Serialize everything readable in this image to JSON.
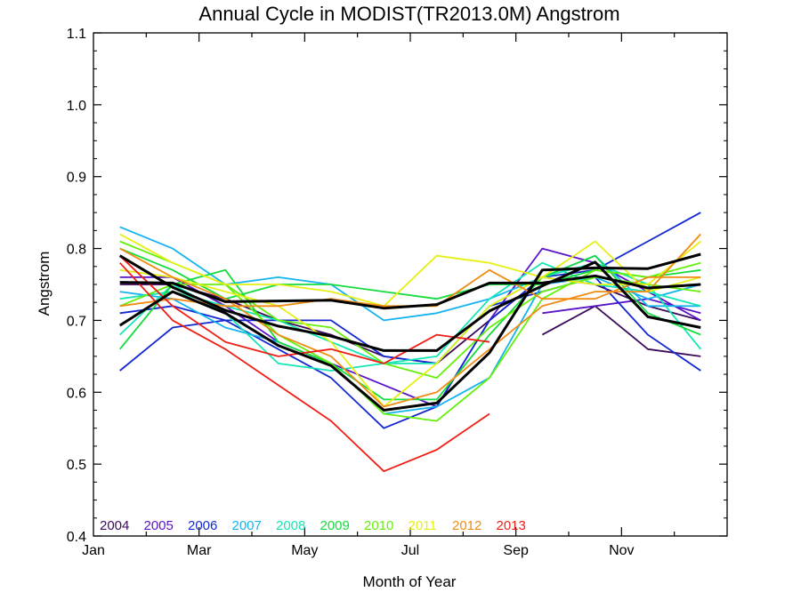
{
  "chart_data": {
    "type": "line",
    "title": "Annual Cycle in MODIST(TR2013.0M) Angstrom",
    "xlabel": "Month of Year",
    "ylabel": "Angstrom",
    "xlim": [
      0,
      12
    ],
    "ylim": [
      0.4,
      1.1
    ],
    "x_ticks": [
      {
        "value": 0,
        "label": "Jan"
      },
      {
        "value": 2,
        "label": "Mar"
      },
      {
        "value": 4,
        "label": "May"
      },
      {
        "value": 6,
        "label": "Jul"
      },
      {
        "value": 8,
        "label": "Sep"
      },
      {
        "value": 10,
        "label": "Nov"
      }
    ],
    "y_ticks": [
      0.4,
      0.5,
      0.6,
      0.7,
      0.8,
      0.9,
      1.0,
      1.1
    ],
    "y_tick_labels": [
      "0.4",
      "0.5",
      "0.6",
      "0.7",
      "0.8",
      "0.9",
      "1.0",
      "1.1"
    ],
    "x": [
      0.5,
      1.5,
      2.5,
      3.5,
      4.5,
      5.5,
      6.5,
      7.5,
      8.5,
      9.5,
      10.5,
      11.5
    ],
    "legend_placement": "bottom-left",
    "grid": false,
    "series": [
      {
        "name": "2004",
        "color": "#3c0a5a",
        "lines": [
          [
            0.75,
            0.75,
            0.73,
            0.7,
            0.68,
            0.65,
            0.64,
            0.7,
            0.76,
            0.75,
            0.72,
            0.7
          ],
          [
            null,
            null,
            null,
            null,
            null,
            null,
            null,
            null,
            0.68,
            0.72,
            0.66,
            0.65
          ]
        ]
      },
      {
        "name": "2005",
        "color": "#5a14c8",
        "lines": [
          [
            0.76,
            0.76,
            0.72,
            0.67,
            0.64,
            0.61,
            0.58,
            0.7,
            0.8,
            0.78,
            0.74,
            0.7
          ],
          [
            null,
            null,
            null,
            null,
            null,
            null,
            null,
            null,
            0.71,
            0.72,
            0.73,
            0.71
          ]
        ]
      },
      {
        "name": "2006",
        "color": "#1428d2",
        "lines": [
          [
            0.63,
            0.69,
            0.7,
            0.66,
            0.62,
            0.55,
            0.58,
            0.7,
            0.76,
            0.77,
            0.81,
            0.85
          ],
          [
            0.71,
            0.72,
            0.7,
            0.7,
            0.7,
            0.65,
            0.64,
            0.72,
            0.74,
            0.76,
            0.68,
            0.63
          ]
        ]
      },
      {
        "name": "2007",
        "color": "#14b4f0",
        "lines": [
          [
            0.83,
            0.8,
            0.75,
            0.76,
            0.75,
            0.7,
            0.71,
            0.73,
            0.76,
            0.79,
            0.72,
            0.72
          ],
          [
            0.74,
            0.73,
            0.69,
            0.67,
            0.64,
            0.57,
            0.58,
            0.62,
            0.75,
            0.76,
            0.73,
            0.75
          ]
        ]
      },
      {
        "name": "2008",
        "color": "#14e6b4",
        "lines": [
          [
            0.68,
            0.75,
            0.71,
            0.64,
            0.63,
            0.64,
            0.64,
            0.72,
            0.76,
            0.78,
            0.75,
            0.66
          ],
          [
            0.73,
            0.74,
            0.72,
            0.7,
            0.67,
            0.64,
            0.65,
            0.73,
            0.78,
            0.75,
            0.74,
            0.72
          ]
        ]
      },
      {
        "name": "2009",
        "color": "#14dc3c",
        "lines": [
          [
            0.66,
            0.75,
            0.77,
            0.67,
            0.64,
            0.59,
            0.59,
            0.68,
            0.76,
            0.79,
            0.71,
            0.68
          ],
          [
            0.8,
            0.77,
            0.73,
            0.75,
            0.75,
            0.74,
            0.73,
            0.75,
            0.75,
            0.77,
            0.76,
            0.77
          ]
        ]
      },
      {
        "name": "2010",
        "color": "#64f00a",
        "lines": [
          [
            0.81,
            0.78,
            0.75,
            0.7,
            0.69,
            0.64,
            0.62,
            0.69,
            0.74,
            0.76,
            0.75,
            0.74
          ],
          [
            0.72,
            0.75,
            0.75,
            0.68,
            0.64,
            0.57,
            0.56,
            0.62,
            0.73,
            0.77,
            0.76,
            0.78
          ]
        ]
      },
      {
        "name": "2011",
        "color": "#e6f014",
        "lines": [
          [
            0.82,
            0.78,
            0.75,
            0.75,
            0.74,
            0.72,
            0.79,
            0.78,
            0.76,
            0.81,
            0.74,
            0.76
          ],
          [
            0.77,
            0.76,
            0.74,
            0.72,
            0.67,
            0.58,
            0.64,
            0.72,
            0.76,
            0.75,
            0.75,
            0.81
          ]
        ]
      },
      {
        "name": "2012",
        "color": "#f08c14",
        "lines": [
          [
            0.8,
            0.76,
            0.73,
            0.68,
            0.65,
            0.58,
            0.6,
            0.66,
            0.72,
            0.74,
            0.74,
            0.82
          ],
          [
            0.72,
            0.73,
            0.72,
            0.72,
            0.73,
            0.72,
            0.72,
            0.77,
            0.73,
            0.73,
            0.76,
            0.76
          ]
        ]
      },
      {
        "name": "2013",
        "color": "#f01e14",
        "lines": [
          [
            0.78,
            0.7,
            0.66,
            0.61,
            0.56,
            0.49,
            0.52,
            0.57,
            null,
            null,
            null,
            null
          ],
          [
            0.79,
            0.72,
            0.67,
            0.65,
            0.66,
            0.64,
            0.68,
            0.67,
            null,
            null,
            null,
            null
          ]
        ]
      }
    ],
    "mean_lines": {
      "color": "#000000",
      "lines": [
        [
          0.753,
          0.752,
          0.726,
          0.727,
          0.728,
          0.717,
          0.722,
          0.752,
          0.752,
          0.762,
          0.745,
          0.75
        ],
        [
          0.79,
          0.746,
          0.714,
          0.692,
          0.678,
          0.658,
          0.658,
          0.713,
          0.748,
          0.781,
          0.705,
          0.69
        ],
        [
          0.693,
          0.74,
          0.71,
          0.665,
          0.637,
          0.575,
          0.585,
          0.655,
          0.77,
          0.773,
          0.772,
          0.792
        ]
      ]
    }
  }
}
